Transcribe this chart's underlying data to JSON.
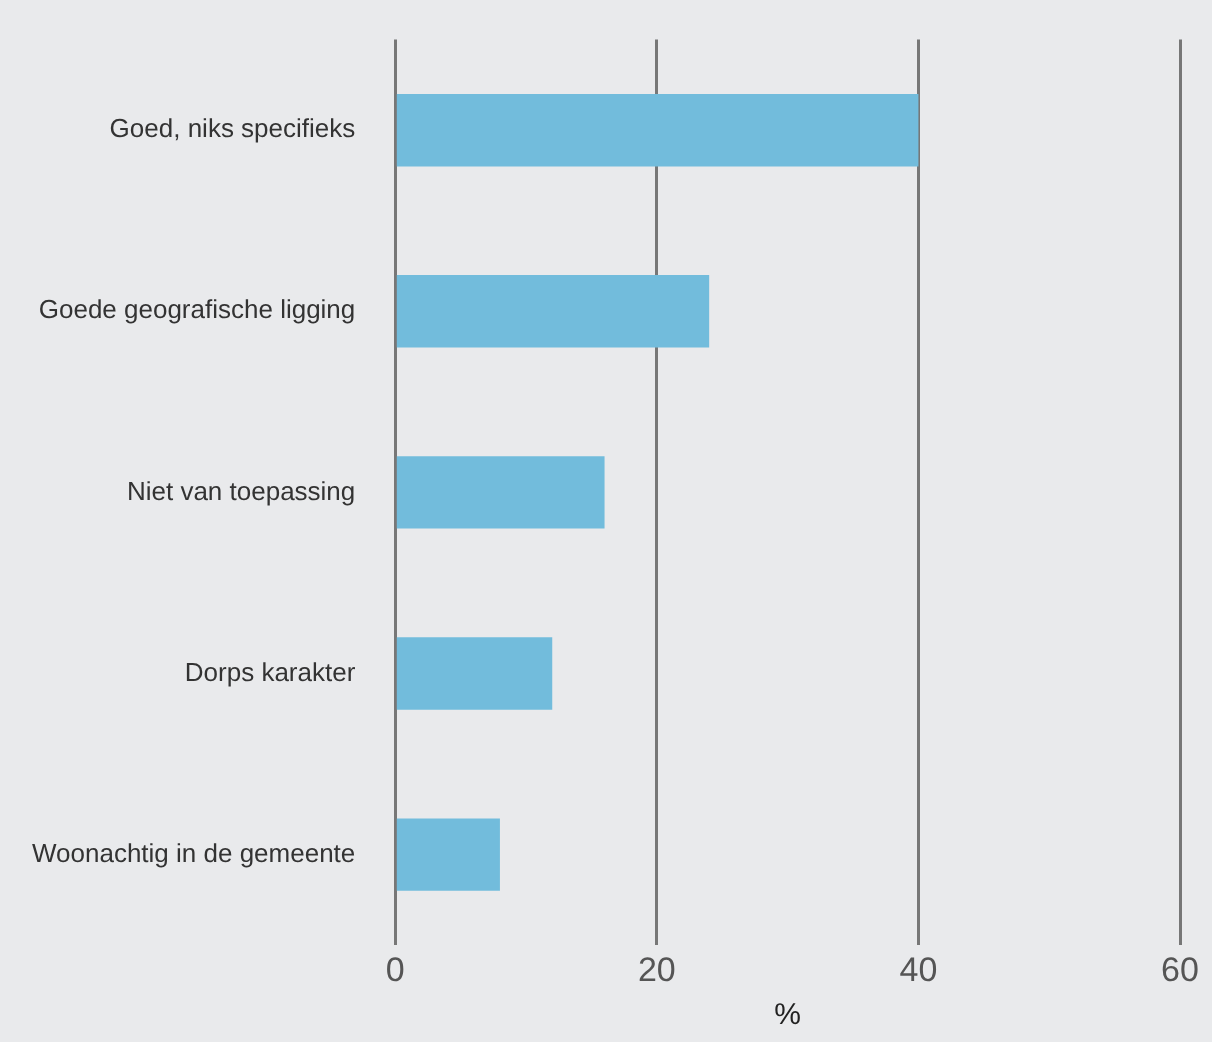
{
  "chart_data": {
    "type": "bar",
    "orientation": "horizontal",
    "xlabel": "%",
    "categories": [
      "Goed, niks specifieks",
      "Goede geografische ligging",
      "Niet van toepassing",
      "Dorps karakter",
      "Woonachtig in de gemeente"
    ],
    "values": [
      40,
      24,
      16,
      12,
      8
    ],
    "color": "#72bcdc",
    "xlim": [
      0,
      60
    ],
    "xticks": [
      0,
      20,
      40,
      60
    ],
    "grid": "x",
    "legend": false
  }
}
